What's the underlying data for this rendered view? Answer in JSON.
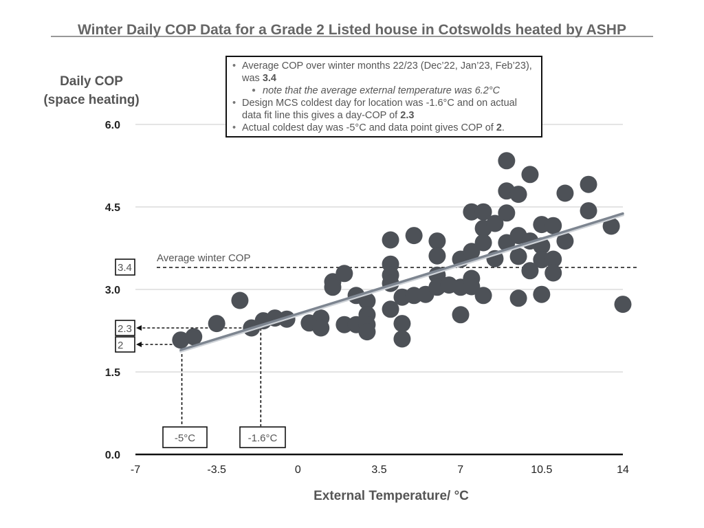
{
  "chart_data": {
    "type": "scatter",
    "title": "Winter Daily COP Data for a Grade 2 Listed house in Cotswolds heated by ASHP",
    "xlabel": "External Temperature/ °C",
    "ylabel_lines": [
      "Daily COP",
      "(space heating)"
    ],
    "xlim": [
      -7,
      14
    ],
    "ylim": [
      0,
      6
    ],
    "xticks": [
      -7,
      -3.5,
      0,
      3.5,
      7,
      10.5,
      14
    ],
    "xtick_labels": [
      "-7",
      "-3.5",
      "0",
      "3.5",
      "7",
      "10.5",
      "14"
    ],
    "yticks": [
      0,
      1.5,
      3,
      4.5,
      6
    ],
    "ytick_labels": [
      "0.0",
      "1.5",
      "3.0",
      "4.5",
      "6.0"
    ],
    "grid": "horizontal",
    "marker_color": "#4d5157",
    "fit_line_color": "#7d8590",
    "series": [
      {
        "name": "Daily COP",
        "points": [
          [
            -5.05,
            2.08
          ],
          [
            -4.49,
            2.14
          ],
          [
            -3.5,
            2.38
          ],
          [
            -2.5,
            2.8
          ],
          [
            -2.0,
            2.3
          ],
          [
            -1.49,
            2.43
          ],
          [
            -0.99,
            2.48
          ],
          [
            -0.48,
            2.46
          ],
          [
            0.49,
            2.39
          ],
          [
            0.99,
            2.48
          ],
          [
            0.99,
            2.3
          ],
          [
            1.5,
            3.14
          ],
          [
            1.5,
            3.04
          ],
          [
            2.0,
            3.29
          ],
          [
            2.0,
            2.36
          ],
          [
            2.51,
            2.89
          ],
          [
            2.51,
            2.36
          ],
          [
            2.98,
            2.79
          ],
          [
            2.98,
            2.54
          ],
          [
            2.98,
            2.36
          ],
          [
            2.98,
            2.23
          ],
          [
            3.99,
            3.9
          ],
          [
            3.99,
            3.46
          ],
          [
            3.99,
            3.26
          ],
          [
            3.99,
            3.11
          ],
          [
            3.99,
            2.64
          ],
          [
            4.49,
            2.38
          ],
          [
            4.49,
            2.1
          ],
          [
            4.49,
            2.86
          ],
          [
            5.0,
            3.98
          ],
          [
            5.0,
            2.89
          ],
          [
            5.5,
            2.91
          ],
          [
            6.0,
            3.88
          ],
          [
            6.0,
            3.61
          ],
          [
            6.0,
            3.26
          ],
          [
            6.0,
            3.04
          ],
          [
            6.51,
            3.08
          ],
          [
            7.01,
            3.55
          ],
          [
            7.01,
            3.04
          ],
          [
            7.01,
            2.54
          ],
          [
            7.48,
            3.69
          ],
          [
            7.48,
            4.41
          ],
          [
            7.48,
            3.2
          ],
          [
            7.48,
            3.05
          ],
          [
            7.99,
            4.41
          ],
          [
            7.99,
            4.11
          ],
          [
            7.99,
            3.85
          ],
          [
            7.99,
            2.89
          ],
          [
            8.49,
            4.2
          ],
          [
            8.49,
            3.56
          ],
          [
            8.99,
            5.34
          ],
          [
            8.99,
            4.79
          ],
          [
            8.99,
            4.39
          ],
          [
            8.99,
            3.85
          ],
          [
            9.5,
            4.73
          ],
          [
            9.5,
            3.98
          ],
          [
            9.5,
            3.6
          ],
          [
            9.5,
            2.84
          ],
          [
            10.0,
            5.09
          ],
          [
            10.0,
            3.88
          ],
          [
            10.0,
            3.34
          ],
          [
            10.5,
            4.18
          ],
          [
            10.5,
            3.79
          ],
          [
            10.5,
            3.54
          ],
          [
            10.5,
            2.91
          ],
          [
            11.0,
            4.16
          ],
          [
            11.0,
            3.55
          ],
          [
            11.0,
            3.3
          ],
          [
            11.51,
            4.75
          ],
          [
            11.51,
            3.88
          ],
          [
            12.52,
            4.91
          ],
          [
            12.52,
            4.43
          ],
          [
            13.5,
            4.15
          ],
          [
            14.0,
            2.73
          ]
        ]
      }
    ],
    "fit_line": {
      "from": [
        -5.05,
        1.9
      ],
      "to": [
        14.0,
        4.38
      ]
    },
    "average_line": {
      "y": 3.4,
      "label": "Average winter COP",
      "box_label": "3.4",
      "x_end": 14.6
    },
    "annotations": [
      {
        "name": "design-day",
        "x": -1.6,
        "y": 2.3,
        "x_label": "-1.6°C",
        "y_label": "2.3"
      },
      {
        "name": "coldest-day",
        "x": -5.0,
        "y": 2.0,
        "x_label": "-5°C",
        "y_label": "2"
      }
    ],
    "notes": [
      {
        "level": 1,
        "text": "Average COP over winter months 22/23 (Dec’22, Jan’23, Feb’23), was ",
        "bold": "3.4",
        "after": ""
      },
      {
        "level": 2,
        "text": "note that the average external temperature was 6.2°C",
        "bold": "",
        "after": ""
      },
      {
        "level": 1,
        "text": "Design MCS coldest day for location was -1.6°C and on actual data fit line this gives a day-COP of ",
        "bold": "2.3",
        "after": ""
      },
      {
        "level": 1,
        "text": "Actual coldest day was -5°C and data point gives COP of ",
        "bold": "2",
        "after": "."
      }
    ]
  }
}
